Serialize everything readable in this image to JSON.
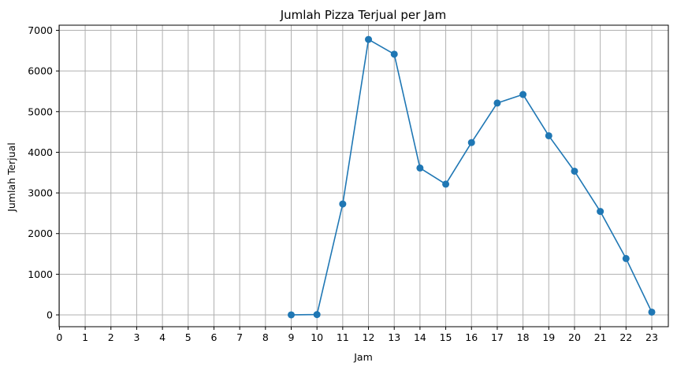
{
  "chart_data": {
    "type": "line",
    "title": "Jumlah Pizza Terjual per Jam",
    "xlabel": "Jam",
    "ylabel": "Jumlah Terjual",
    "xlim": [
      0,
      23
    ],
    "ylim": [
      0,
      7000
    ],
    "xticks": [
      0,
      1,
      2,
      3,
      4,
      5,
      6,
      7,
      8,
      9,
      10,
      11,
      12,
      13,
      14,
      15,
      16,
      17,
      18,
      19,
      20,
      21,
      22,
      23
    ],
    "yticks": [
      0,
      1000,
      2000,
      3000,
      4000,
      5000,
      6000,
      7000
    ],
    "grid": true,
    "marker": "circle",
    "series": [
      {
        "color": "#1f77b4",
        "x": [
          9,
          10,
          11,
          12,
          13,
          14,
          15,
          16,
          17,
          18,
          19,
          20,
          21,
          22,
          23
        ],
        "y": [
          1,
          8,
          2728,
          6776,
          6413,
          3613,
          3216,
          4239,
          5211,
          5421,
          4406,
          3534,
          2545,
          1386,
          68
        ]
      }
    ]
  }
}
